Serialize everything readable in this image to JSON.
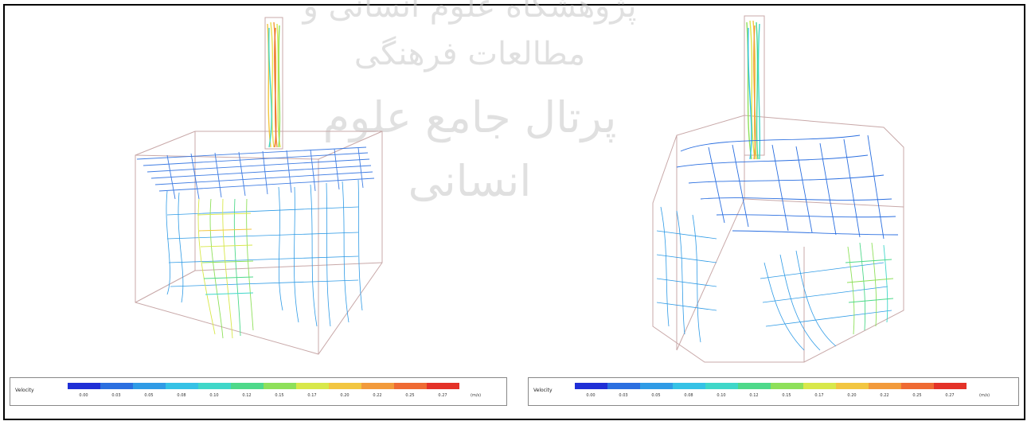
{
  "watermark": {
    "line1": "پژوهشگاه علوم انسانی و مطالعات فرهنگی",
    "line2": "پرتال جامع علوم انسانی"
  },
  "colorbar_left": {
    "label": "Velocity",
    "unit": "(m/s)",
    "ticks": [
      "0.00",
      "0.03",
      "0.05",
      "0.08",
      "0.10",
      "0.12",
      "0.15",
      "0.17",
      "0.20",
      "0.22",
      "0.25",
      "0.27"
    ]
  },
  "colorbar_right": {
    "label": "Velocity",
    "unit": "(m/s)",
    "ticks": [
      "0.00",
      "0.03",
      "0.05",
      "0.08",
      "0.10",
      "0.12",
      "0.15",
      "0.17",
      "0.20",
      "0.22",
      "0.25",
      "0.27"
    ]
  },
  "colors": {
    "scale": [
      "#1f2fd6",
      "#2b6fe0",
      "#2f9be6",
      "#35c2e6",
      "#3fd7c9",
      "#4ed98a",
      "#8ee05a",
      "#d8e84a",
      "#f2c640",
      "#f29a3a",
      "#ef6a33",
      "#e43228"
    ]
  }
}
